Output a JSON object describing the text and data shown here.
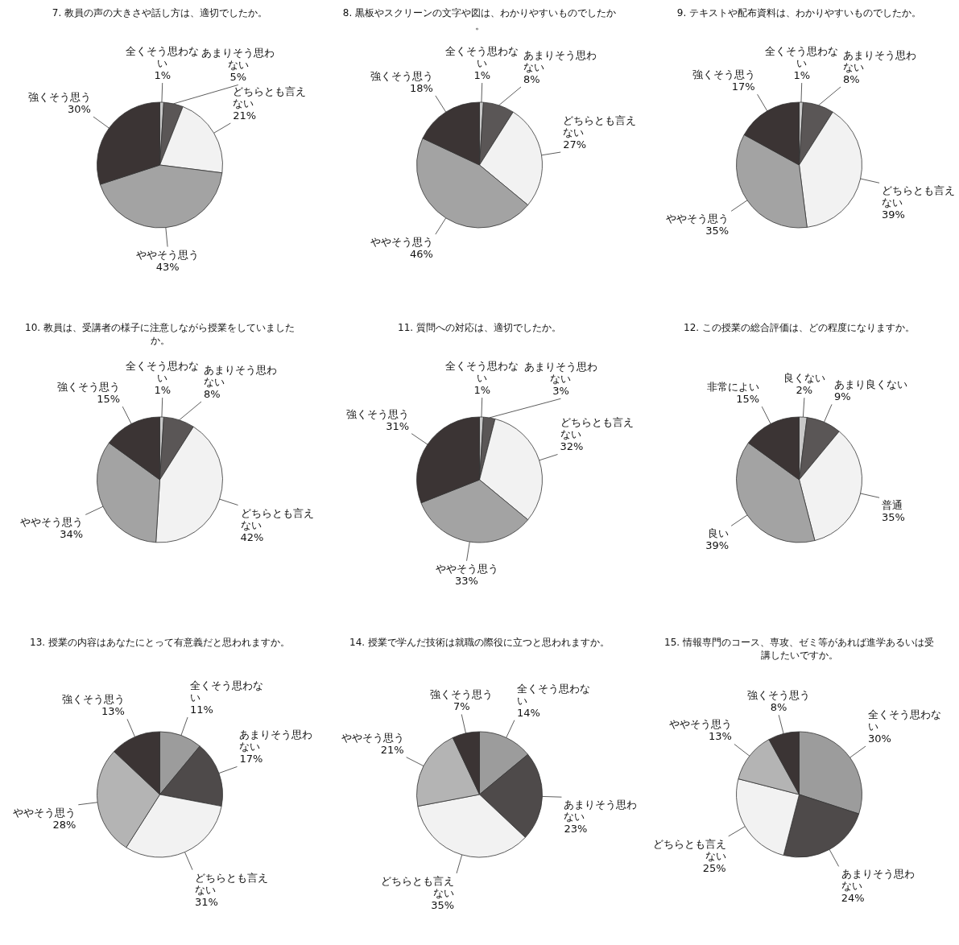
{
  "chart_data": [
    {
      "type": "pie",
      "title": "7. 教員の声の大きさや話し方は、適切でしたか。",
      "categories": [
        "全くそう思わない",
        "あまりそう思わない",
        "どちらとも言えない",
        "ややそう思う",
        "強くそう思う"
      ],
      "values": [
        1,
        5,
        21,
        43,
        30
      ],
      "value_labels": [
        "1%",
        "5%",
        "21%",
        "43%",
        "30%"
      ],
      "colors": [
        "#c8c8c8",
        "#5a5656",
        "#f2f2f2",
        "#a3a3a3",
        "#3b3434"
      ]
    },
    {
      "type": "pie",
      "title": "8. 黒板やスクリーンの文字や図は、わかりやすいものでしたか。",
      "categories": [
        "全くそう思わない",
        "あまりそう思わない",
        "どちらとも言えない",
        "ややそう思う",
        "強くそう思う"
      ],
      "values": [
        1,
        8,
        27,
        46,
        18
      ],
      "value_labels": [
        "1%",
        "8%",
        "27%",
        "46%",
        "18%"
      ],
      "colors": [
        "#c8c8c8",
        "#5a5656",
        "#f2f2f2",
        "#a3a3a3",
        "#3b3434"
      ]
    },
    {
      "type": "pie",
      "title": "9. テキストや配布資料は、わかりやすいものでしたか。",
      "categories": [
        "全くそう思わない",
        "あまりそう思わない",
        "どちらとも言えない",
        "ややそう思う",
        "強くそう思う"
      ],
      "values": [
        1,
        8,
        39,
        35,
        17
      ],
      "value_labels": [
        "1%",
        "8%",
        "39%",
        "35%",
        "17%"
      ],
      "colors": [
        "#c8c8c8",
        "#5a5656",
        "#f2f2f2",
        "#a3a3a3",
        "#3b3434"
      ]
    },
    {
      "type": "pie",
      "title": "10. 教員は、受講者の様子に注意しながら授業をしていましたか。",
      "categories": [
        "全くそう思わない",
        "あまりそう思わない",
        "どちらとも言えない",
        "ややそう思う",
        "強くそう思う"
      ],
      "values": [
        1,
        8,
        42,
        34,
        15
      ],
      "value_labels": [
        "1%",
        "8%",
        "42%",
        "34%",
        "15%"
      ],
      "colors": [
        "#c8c8c8",
        "#5a5656",
        "#f2f2f2",
        "#a3a3a3",
        "#3b3434"
      ]
    },
    {
      "type": "pie",
      "title": "11. 質問への対応は、適切でしたか。",
      "categories": [
        "全くそう思わない",
        "あまりそう思わない",
        "どちらとも言えない",
        "ややそう思う",
        "強くそう思う"
      ],
      "values": [
        1,
        3,
        32,
        33,
        31
      ],
      "value_labels": [
        "1%",
        "3%",
        "32%",
        "33%",
        "31%"
      ],
      "colors": [
        "#c8c8c8",
        "#5a5656",
        "#f2f2f2",
        "#a3a3a3",
        "#3b3434"
      ]
    },
    {
      "type": "pie",
      "title": "12. この授業の総合評価は、どの程度になりますか。",
      "categories": [
        "良くない",
        "あまり良くない",
        "普通",
        "良い",
        "非常によい"
      ],
      "values": [
        2,
        9,
        35,
        39,
        15
      ],
      "value_labels": [
        "2%",
        "9%",
        "35%",
        "39%",
        "15%"
      ],
      "colors": [
        "#c8c8c8",
        "#5a5656",
        "#f2f2f2",
        "#a3a3a3",
        "#3b3434"
      ]
    },
    {
      "type": "pie",
      "title": "13. 授業の内容はあなたにとって有意義だと思われますか。",
      "categories": [
        "全くそう思わない",
        "あまりそう思わない",
        "どちらとも言えない",
        "ややそう思う",
        "強くそう思う"
      ],
      "values": [
        11,
        17,
        31,
        28,
        13
      ],
      "value_labels": [
        "11%",
        "17%",
        "31%",
        "28%",
        "13%"
      ],
      "colors": [
        "#9c9c9c",
        "#4e4a4a",
        "#f2f2f2",
        "#b4b4b4",
        "#3b3434"
      ]
    },
    {
      "type": "pie",
      "title": "14. 授業で学んだ技術は就職の際役に立つと思われますか。",
      "categories": [
        "全くそう思わない",
        "あまりそう思わない",
        "どちらとも言えない",
        "ややそう思う",
        "強くそう思う"
      ],
      "values": [
        14,
        23,
        35,
        21,
        7
      ],
      "value_labels": [
        "14%",
        "23%",
        "35%",
        "21%",
        "7%"
      ],
      "colors": [
        "#9c9c9c",
        "#4e4a4a",
        "#f2f2f2",
        "#b4b4b4",
        "#3b3434"
      ]
    },
    {
      "type": "pie",
      "title": "15. 情報専門のコース、専攻、ゼミ等があれば進学あるいは受講したいですか。",
      "categories": [
        "全くそう思わない",
        "あまりそう思わない",
        "どちらとも言えない",
        "ややそう思う",
        "強くそう思う"
      ],
      "values": [
        30,
        24,
        25,
        13,
        8
      ],
      "value_labels": [
        "30%",
        "24%",
        "25%",
        "13%",
        "8%"
      ],
      "colors": [
        "#9c9c9c",
        "#4e4a4a",
        "#f2f2f2",
        "#b4b4b4",
        "#3b3434"
      ]
    }
  ]
}
